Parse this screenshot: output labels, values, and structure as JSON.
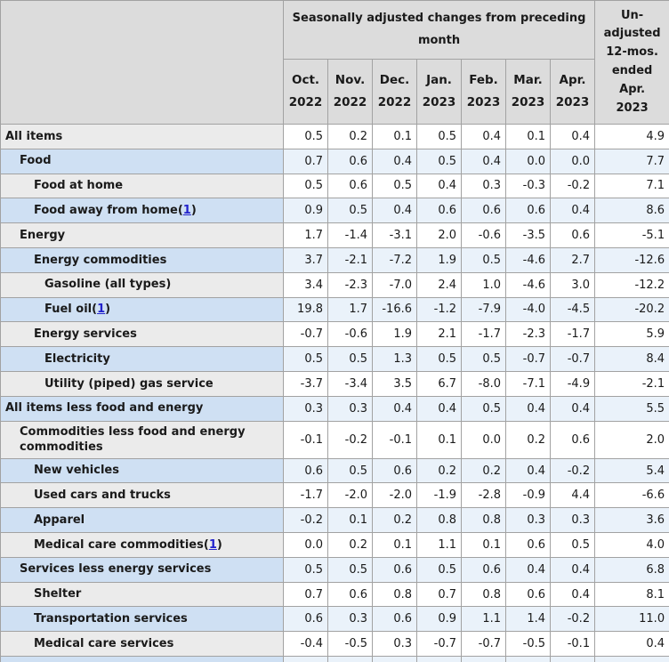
{
  "chart_data": {
    "type": "table",
    "group_header": "Seasonally adjusted changes from preceding\nmonth",
    "unadjusted_header": "Un-\nadjusted\n12-mos.\nended\nApr.\n2023",
    "month_columns": [
      {
        "month": "Oct.",
        "year": "2022"
      },
      {
        "month": "Nov.",
        "year": "2022"
      },
      {
        "month": "Dec.",
        "year": "2022"
      },
      {
        "month": "Jan.",
        "year": "2023"
      },
      {
        "month": "Feb.",
        "year": "2023"
      },
      {
        "month": "Mar.",
        "year": "2023"
      },
      {
        "month": "Apr.",
        "year": "2023"
      }
    ],
    "rows": [
      {
        "label": "All items",
        "indent": 0,
        "footnote": null,
        "values": [
          "0.5",
          "0.2",
          "0.1",
          "0.5",
          "0.4",
          "0.1",
          "0.4",
          "4.9"
        ]
      },
      {
        "label": "Food",
        "indent": 1,
        "footnote": null,
        "values": [
          "0.7",
          "0.6",
          "0.4",
          "0.5",
          "0.4",
          "0.0",
          "0.0",
          "7.7"
        ]
      },
      {
        "label": "Food at home",
        "indent": 2,
        "footnote": null,
        "values": [
          "0.5",
          "0.6",
          "0.5",
          "0.4",
          "0.3",
          "-0.3",
          "-0.2",
          "7.1"
        ]
      },
      {
        "label": "Food away from home",
        "indent": 2,
        "footnote": "1",
        "values": [
          "0.9",
          "0.5",
          "0.4",
          "0.6",
          "0.6",
          "0.6",
          "0.4",
          "8.6"
        ]
      },
      {
        "label": "Energy",
        "indent": 1,
        "footnote": null,
        "values": [
          "1.7",
          "-1.4",
          "-3.1",
          "2.0",
          "-0.6",
          "-3.5",
          "0.6",
          "-5.1"
        ]
      },
      {
        "label": "Energy commodities",
        "indent": 2,
        "footnote": null,
        "values": [
          "3.7",
          "-2.1",
          "-7.2",
          "1.9",
          "0.5",
          "-4.6",
          "2.7",
          "-12.6"
        ]
      },
      {
        "label": "Gasoline (all types)",
        "indent": 3,
        "footnote": null,
        "values": [
          "3.4",
          "-2.3",
          "-7.0",
          "2.4",
          "1.0",
          "-4.6",
          "3.0",
          "-12.2"
        ]
      },
      {
        "label": "Fuel oil",
        "indent": 3,
        "footnote": "1",
        "values": [
          "19.8",
          "1.7",
          "-16.6",
          "-1.2",
          "-7.9",
          "-4.0",
          "-4.5",
          "-20.2"
        ]
      },
      {
        "label": "Energy services",
        "indent": 2,
        "footnote": null,
        "values": [
          "-0.7",
          "-0.6",
          "1.9",
          "2.1",
          "-1.7",
          "-2.3",
          "-1.7",
          "5.9"
        ]
      },
      {
        "label": "Electricity",
        "indent": 3,
        "footnote": null,
        "values": [
          "0.5",
          "0.5",
          "1.3",
          "0.5",
          "0.5",
          "-0.7",
          "-0.7",
          "8.4"
        ]
      },
      {
        "label": "Utility (piped) gas service",
        "indent": 3,
        "footnote": null,
        "values": [
          "-3.7",
          "-3.4",
          "3.5",
          "6.7",
          "-8.0",
          "-7.1",
          "-4.9",
          "-2.1"
        ]
      },
      {
        "label": "All items less food and energy",
        "indent": 0,
        "footnote": null,
        "values": [
          "0.3",
          "0.3",
          "0.4",
          "0.4",
          "0.5",
          "0.4",
          "0.4",
          "5.5"
        ]
      },
      {
        "label": "Commodities less food and energy commodities",
        "indent": 1,
        "footnote": null,
        "values": [
          "-0.1",
          "-0.2",
          "-0.1",
          "0.1",
          "0.0",
          "0.2",
          "0.6",
          "2.0"
        ]
      },
      {
        "label": "New vehicles",
        "indent": 2,
        "footnote": null,
        "values": [
          "0.6",
          "0.5",
          "0.6",
          "0.2",
          "0.2",
          "0.4",
          "-0.2",
          "5.4"
        ]
      },
      {
        "label": "Used cars and trucks",
        "indent": 2,
        "footnote": null,
        "values": [
          "-1.7",
          "-2.0",
          "-2.0",
          "-1.9",
          "-2.8",
          "-0.9",
          "4.4",
          "-6.6"
        ]
      },
      {
        "label": "Apparel",
        "indent": 2,
        "footnote": null,
        "values": [
          "-0.2",
          "0.1",
          "0.2",
          "0.8",
          "0.8",
          "0.3",
          "0.3",
          "3.6"
        ]
      },
      {
        "label": "Medical care commodities",
        "indent": 2,
        "footnote": "1",
        "values": [
          "0.0",
          "0.2",
          "0.1",
          "1.1",
          "0.1",
          "0.6",
          "0.5",
          "4.0"
        ]
      },
      {
        "label": "Services less energy services",
        "indent": 1,
        "footnote": null,
        "values": [
          "0.5",
          "0.5",
          "0.6",
          "0.5",
          "0.6",
          "0.4",
          "0.4",
          "6.8"
        ]
      },
      {
        "label": "Shelter",
        "indent": 2,
        "footnote": null,
        "values": [
          "0.7",
          "0.6",
          "0.8",
          "0.7",
          "0.8",
          "0.6",
          "0.4",
          "8.1"
        ]
      },
      {
        "label": "Transportation services",
        "indent": 2,
        "footnote": null,
        "values": [
          "0.6",
          "0.3",
          "0.6",
          "0.9",
          "1.1",
          "1.4",
          "-0.2",
          "11.0"
        ]
      },
      {
        "label": "Medical care services",
        "indent": 2,
        "footnote": null,
        "values": [
          "-0.4",
          "-0.5",
          "0.3",
          "-0.7",
          "-0.7",
          "-0.5",
          "-0.1",
          "0.4"
        ]
      }
    ]
  },
  "colors": {
    "header_bg": "#dcdcdc",
    "row_label_gray": "#ebebeb",
    "row_label_blue": "#cfe0f3",
    "row_data_blue": "#eaf2fa",
    "row_data_white": "#ffffff",
    "border": "#a2a2a2",
    "text": "#1a1a1a",
    "footnote_link": "#2222cc"
  }
}
